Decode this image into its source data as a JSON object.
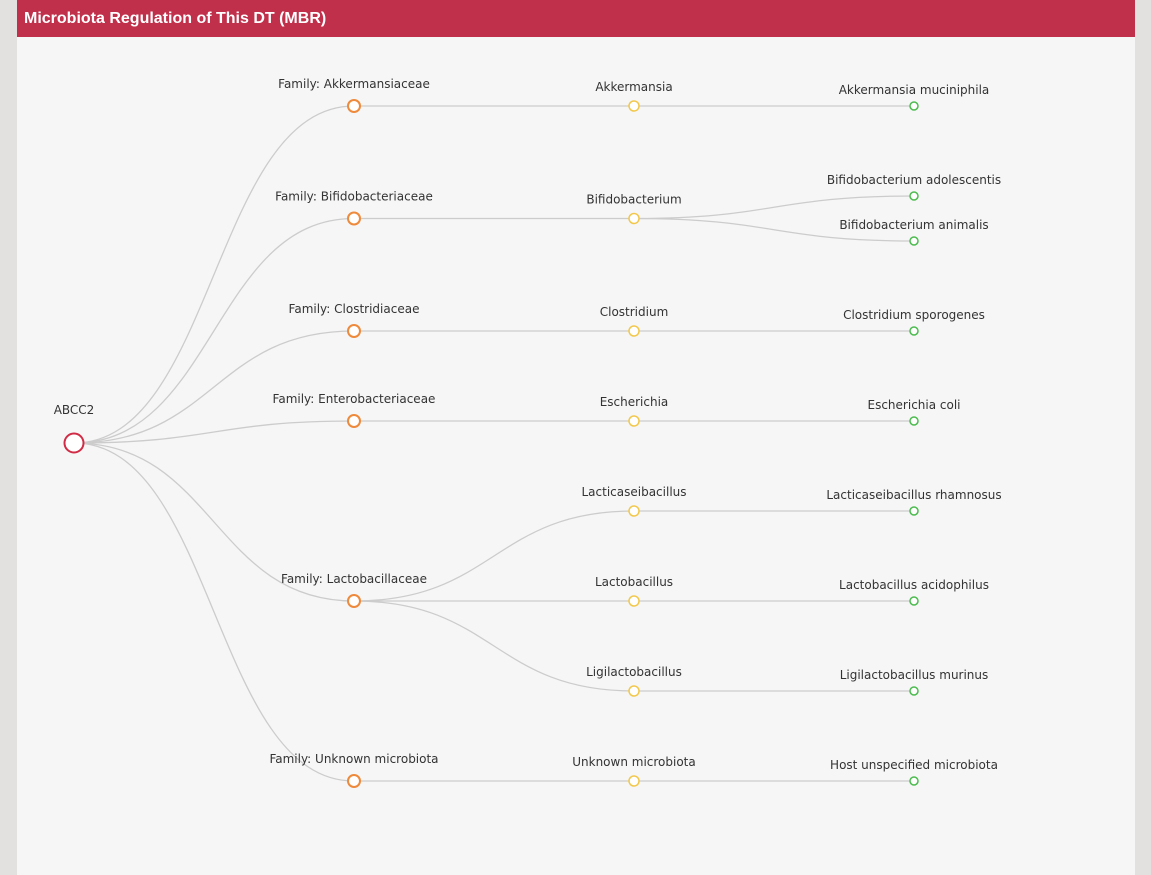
{
  "panel": {
    "title": "Microbiota Regulation of This DT (MBR)"
  },
  "colors": {
    "header": "#c1304b",
    "root": "#d12c46",
    "family": "#ee8a3c",
    "genus": "#f2c84b",
    "species": "#4cbb4f",
    "link": "#cccccc"
  },
  "tree": {
    "name": "ABCC2",
    "children": [
      {
        "name": "Family: Akkermansiaceae",
        "children": [
          {
            "name": "Akkermansia",
            "children": [
              {
                "name": "Akkermansia muciniphila"
              }
            ]
          }
        ]
      },
      {
        "name": "Family: Bifidobacteriaceae",
        "children": [
          {
            "name": "Bifidobacterium",
            "children": [
              {
                "name": "Bifidobacterium adolescentis"
              },
              {
                "name": "Bifidobacterium animalis"
              }
            ]
          }
        ]
      },
      {
        "name": "Family: Clostridiaceae",
        "children": [
          {
            "name": "Clostridium",
            "children": [
              {
                "name": "Clostridium sporogenes"
              }
            ]
          }
        ]
      },
      {
        "name": "Family: Enterobacteriaceae",
        "children": [
          {
            "name": "Escherichia",
            "children": [
              {
                "name": "Escherichia coli"
              }
            ]
          }
        ]
      },
      {
        "name": "Family: Lactobacillaceae",
        "children": [
          {
            "name": "Lacticaseibacillus",
            "children": [
              {
                "name": "Lacticaseibacillus rhamnosus"
              }
            ]
          },
          {
            "name": "Lactobacillus",
            "children": [
              {
                "name": "Lactobacillus acidophilus"
              }
            ]
          },
          {
            "name": "Ligilactobacillus",
            "children": [
              {
                "name": "Ligilactobacillus murinus"
              }
            ]
          }
        ]
      },
      {
        "name": "Family: Unknown microbiota",
        "children": [
          {
            "name": "Unknown microbiota",
            "children": [
              {
                "name": "Host unspecified microbiota"
              }
            ]
          }
        ]
      }
    ]
  }
}
